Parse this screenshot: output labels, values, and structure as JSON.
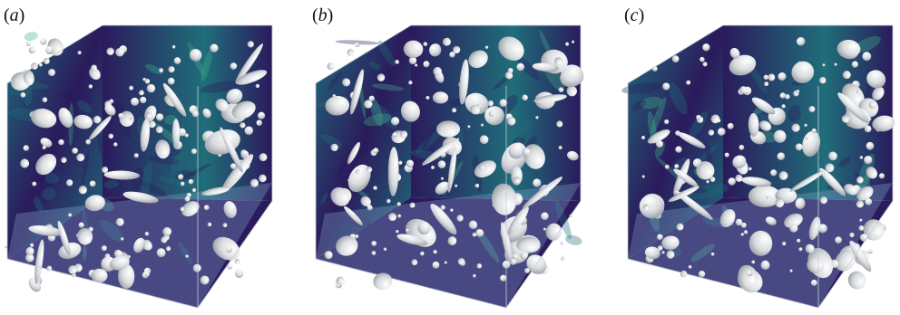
{
  "panels": [
    {
      "label_open": "(",
      "label_letter": "a",
      "label_close": ")"
    },
    {
      "label_open": "(",
      "label_letter": "b",
      "label_close": ")"
    },
    {
      "label_open": "(",
      "label_letter": "c",
      "label_close": ")"
    }
  ],
  "colors": {
    "field_dark": "#2b1a5c",
    "field_mid": "#1f6e7a",
    "field_bright": "#3fb38a",
    "floor_tint": "#7fa4c9",
    "bubble_fill": "#d9dbde",
    "bubble_edge": "#9aa0a8"
  },
  "icons": [
    "bubble-cluster-3d-volume-render"
  ]
}
